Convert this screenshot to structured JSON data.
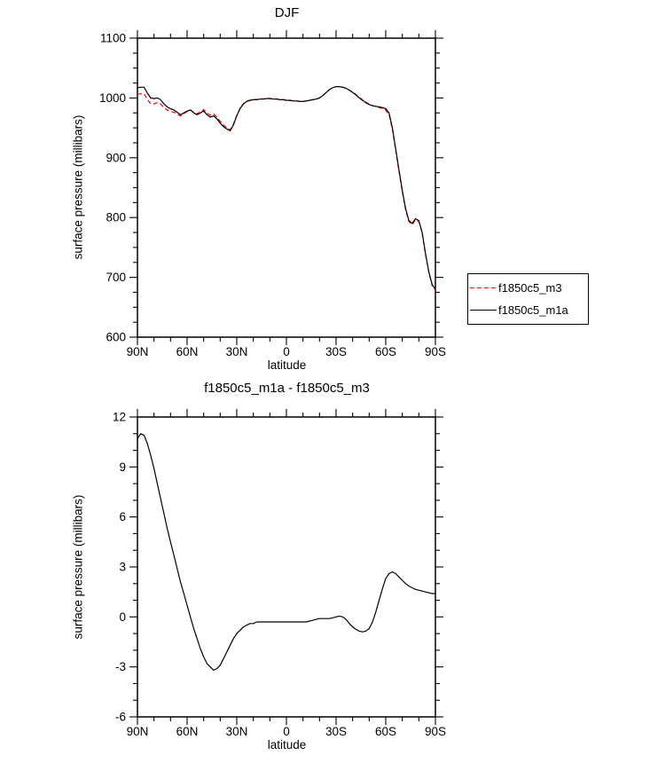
{
  "chart_data": [
    {
      "type": "line",
      "title": "DJF",
      "xlabel": "latitude",
      "ylabel": "surface pressure (millibars)",
      "xlim": [
        90,
        -90
      ],
      "ylim": [
        600,
        1100
      ],
      "grid": false,
      "legend_position": "outside-right-bottom",
      "xticks": {
        "values": [
          90,
          60,
          30,
          0,
          -30,
          -60,
          -90
        ],
        "labels": [
          "90N",
          "60N",
          "30N",
          "0",
          "30S",
          "60S",
          "90S"
        ],
        "minor_step": 10
      },
      "yticks": {
        "values": [
          600,
          700,
          800,
          900,
          1000,
          1100
        ],
        "labels": [
          "600",
          "700",
          "800",
          "900",
          "1000",
          "1100"
        ],
        "minor_step": 25
      },
      "x": [
        90,
        88,
        86,
        84,
        82,
        80,
        78,
        76,
        74,
        72,
        70,
        68,
        66,
        64,
        62,
        60,
        58,
        56,
        54,
        52,
        50,
        48,
        46,
        44,
        42,
        40,
        38,
        36,
        34,
        32,
        30,
        28,
        26,
        24,
        22,
        20,
        18,
        16,
        14,
        12,
        10,
        8,
        6,
        4,
        2,
        0,
        -2,
        -4,
        -6,
        -8,
        -10,
        -12,
        -14,
        -16,
        -18,
        -20,
        -22,
        -24,
        -26,
        -28,
        -30,
        -32,
        -34,
        -36,
        -38,
        -40,
        -42,
        -44,
        -46,
        -48,
        -50,
        -52,
        -54,
        -56,
        -58,
        -60,
        -62,
        -64,
        -66,
        -68,
        -70,
        -72,
        -74,
        -76,
        -78,
        -80,
        -82,
        -84,
        -86,
        -88,
        -90
      ],
      "series": [
        {
          "name": "f1850c5_m3",
          "color": "#ff0000",
          "dashed": true,
          "values": [
            1006.3,
            1007.0,
            1007.1,
            997.6,
            990.3,
            990.1,
            992.0,
            989.9,
            983.8,
            979.7,
            977.5,
            976.3,
            973.1,
            969.9,
            973.6,
            977.3,
            980.0,
            975.7,
            973.3,
            976.9,
            980.4,
            974.8,
            971.0,
            973.2,
            968.1,
            960.9,
            954.5,
            950.1,
            946.7,
            956.3,
            971.0,
            982.8,
            990.6,
            994.5,
            996.4,
            997.4,
            997.3,
            998.3,
            998.3,
            999.3,
            999.3,
            998.3,
            998.3,
            997.3,
            997.3,
            996.3,
            996.3,
            995.3,
            995.3,
            994.3,
            994.3,
            995.3,
            996.3,
            997.2,
            998.2,
            1000.1,
            1004.1,
            1009.1,
            1014.1,
            1017.1,
            1019.0,
            1019.0,
            1018.0,
            1016.2,
            1013.4,
            1009.6,
            1005.8,
            1000.9,
            996.9,
            992.9,
            989.7,
            987.3,
            985.7,
            984.0,
            982.3,
            979.7,
            972.4,
            947.3,
            912.4,
            877.6,
            842.8,
            813.0,
            793.2,
            788.3,
            796.4,
            793.4,
            773.5,
            738.5,
            708.6,
            686.6,
            678.6
          ]
        },
        {
          "name": "f1850c5_m1a",
          "color": "#000000",
          "dashed": false,
          "values": [
            1017,
            1018,
            1018,
            1008,
            1000,
            999,
            1000,
            997,
            990,
            985,
            982,
            980,
            976,
            972,
            975,
            978,
            980,
            975,
            972,
            975,
            978,
            972,
            968,
            970,
            965,
            958,
            952,
            948,
            945,
            955,
            970,
            982,
            990,
            994,
            996,
            997,
            997,
            998,
            998,
            999,
            999,
            998,
            998,
            997,
            997,
            996,
            996,
            995,
            995,
            994,
            994,
            995,
            996,
            997,
            998,
            1000,
            1004,
            1009,
            1014,
            1017,
            1019,
            1019,
            1018,
            1016,
            1013,
            1009,
            1005,
            1000,
            996,
            992,
            989,
            987,
            986,
            985,
            984,
            982,
            975,
            950,
            915,
            880,
            845,
            815,
            795,
            790,
            798,
            795,
            775,
            740,
            710,
            688,
            680
          ]
        }
      ]
    },
    {
      "type": "line",
      "title": "f1850c5_m1a - f1850c5_m3",
      "xlabel": "latitude",
      "ylabel": "surface pressure (millibars)",
      "xlim": [
        90,
        -90
      ],
      "ylim": [
        -6,
        12
      ],
      "grid": false,
      "xticks": {
        "values": [
          90,
          60,
          30,
          0,
          -30,
          -60,
          -90
        ],
        "labels": [
          "90N",
          "60N",
          "30N",
          "0",
          "30S",
          "60S",
          "90S"
        ],
        "minor_step": 10
      },
      "yticks": {
        "values": [
          -6,
          -3,
          0,
          3,
          6,
          9,
          12
        ],
        "labels": [
          "-6",
          "-3",
          "0",
          "3",
          "6",
          "9",
          "12"
        ],
        "minor_step": 1
      },
      "x": [
        90,
        88,
        86,
        84,
        82,
        80,
        78,
        76,
        74,
        72,
        70,
        68,
        66,
        64,
        62,
        60,
        58,
        56,
        54,
        52,
        50,
        48,
        46,
        44,
        42,
        40,
        38,
        36,
        34,
        32,
        30,
        28,
        26,
        24,
        22,
        20,
        18,
        16,
        14,
        12,
        10,
        8,
        6,
        4,
        2,
        0,
        -2,
        -4,
        -6,
        -8,
        -10,
        -12,
        -14,
        -16,
        -18,
        -20,
        -22,
        -24,
        -26,
        -28,
        -30,
        -32,
        -34,
        -36,
        -38,
        -40,
        -42,
        -44,
        -46,
        -48,
        -50,
        -52,
        -54,
        -56,
        -58,
        -60,
        -62,
        -64,
        -66,
        -68,
        -70,
        -72,
        -74,
        -76,
        -78,
        -80,
        -82,
        -84,
        -86,
        -88,
        -90
      ],
      "series": [
        {
          "name": "f1850c5_m1a - f1850c5_m3",
          "color": "#000000",
          "dashed": false,
          "values": [
            10.7,
            11.0,
            10.9,
            10.4,
            9.7,
            8.9,
            8.0,
            7.1,
            6.2,
            5.3,
            4.5,
            3.7,
            2.9,
            2.1,
            1.4,
            0.7,
            0.0,
            -0.7,
            -1.3,
            -1.9,
            -2.4,
            -2.8,
            -3.0,
            -3.2,
            -3.1,
            -2.9,
            -2.5,
            -2.1,
            -1.7,
            -1.3,
            -1.0,
            -0.8,
            -0.6,
            -0.5,
            -0.4,
            -0.4,
            -0.3,
            -0.3,
            -0.3,
            -0.3,
            -0.3,
            -0.3,
            -0.3,
            -0.3,
            -0.3,
            -0.3,
            -0.3,
            -0.3,
            -0.3,
            -0.3,
            -0.3,
            -0.3,
            -0.25,
            -0.2,
            -0.15,
            -0.1,
            -0.1,
            -0.1,
            -0.1,
            -0.05,
            0.0,
            0.05,
            0.0,
            -0.15,
            -0.4,
            -0.6,
            -0.75,
            -0.85,
            -0.9,
            -0.85,
            -0.7,
            -0.3,
            0.3,
            1.0,
            1.7,
            2.3,
            2.6,
            2.7,
            2.6,
            2.4,
            2.2,
            2.0,
            1.85,
            1.75,
            1.65,
            1.6,
            1.55,
            1.5,
            1.45,
            1.4,
            1.4
          ]
        }
      ]
    }
  ],
  "legend": {
    "items": [
      {
        "label": "f1850c5_m3",
        "line": "red-dashed"
      },
      {
        "label": "f1850c5_m1a",
        "line": "black-solid"
      }
    ]
  },
  "colors": {
    "series_red": "#ff0000",
    "series_black": "#000000",
    "frame": "#000000",
    "background": "#ffffff"
  }
}
